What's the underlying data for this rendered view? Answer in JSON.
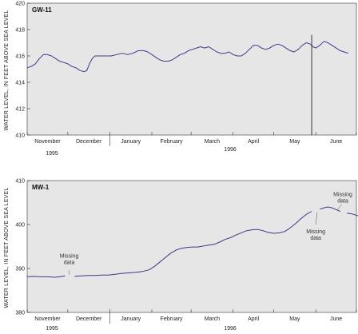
{
  "chart_data": [
    {
      "type": "line",
      "panel_label": "GW-11",
      "ylabel": "WATER LEVEL, IN FEET ABOVE SEA LEVEL",
      "ylim": [
        410,
        420
      ],
      "yticks": [
        410,
        412,
        414,
        416,
        418,
        420
      ],
      "month_labels": [
        "November",
        "December",
        "January",
        "February",
        "March",
        "April",
        "May",
        "June"
      ],
      "year_labels": [
        "1995",
        "1996"
      ],
      "grid": false,
      "background": "#e6e6e6",
      "line_color": "#3a3a8c",
      "series": [
        {
          "values": [
            [
              0,
              415.1
            ],
            [
              3,
              415.2
            ],
            [
              6,
              415.4
            ],
            [
              9,
              415.8
            ],
            [
              12,
              416.1
            ],
            [
              15,
              416.1
            ],
            [
              18,
              416.0
            ],
            [
              21,
              415.8
            ],
            [
              24,
              415.6
            ],
            [
              27,
              415.5
            ],
            [
              30,
              415.4
            ],
            [
              33,
              415.2
            ],
            [
              36,
              415.1
            ],
            [
              39,
              414.9
            ],
            [
              42,
              414.8
            ],
            [
              44,
              414.9
            ],
            [
              46,
              415.4
            ],
            [
              48,
              415.8
            ],
            [
              50,
              416.0
            ],
            [
              54,
              416.0
            ],
            [
              58,
              416.0
            ],
            [
              62,
              416.0
            ],
            [
              66,
              416.1
            ],
            [
              70,
              416.2
            ],
            [
              74,
              416.1
            ],
            [
              78,
              416.2
            ],
            [
              82,
              416.4
            ],
            [
              86,
              416.4
            ],
            [
              89,
              416.3
            ],
            [
              92,
              416.1
            ],
            [
              95,
              415.9
            ],
            [
              98,
              415.7
            ],
            [
              101,
              415.6
            ],
            [
              104,
              415.6
            ],
            [
              107,
              415.7
            ],
            [
              110,
              415.9
            ],
            [
              113,
              416.1
            ],
            [
              116,
              416.2
            ],
            [
              119,
              416.4
            ],
            [
              122,
              416.5
            ],
            [
              125,
              416.6
            ],
            [
              128,
              416.7
            ],
            [
              131,
              416.6
            ],
            [
              134,
              416.7
            ],
            [
              137,
              416.5
            ],
            [
              140,
              416.3
            ],
            [
              143,
              416.2
            ],
            [
              146,
              416.2
            ],
            [
              149,
              416.3
            ],
            [
              152,
              416.1
            ],
            [
              155,
              416.0
            ],
            [
              158,
              416.0
            ],
            [
              161,
              416.2
            ],
            [
              164,
              416.5
            ],
            [
              167,
              416.8
            ],
            [
              170,
              416.8
            ],
            [
              173,
              416.6
            ],
            [
              176,
              416.5
            ],
            [
              179,
              416.6
            ],
            [
              182,
              416.8
            ],
            [
              185,
              416.9
            ],
            [
              188,
              416.8
            ],
            [
              191,
              416.6
            ],
            [
              194,
              416.4
            ],
            [
              197,
              416.3
            ],
            [
              200,
              416.5
            ],
            [
              203,
              416.8
            ],
            [
              206,
              417.0
            ],
            [
              209,
              416.9
            ],
            [
              211,
              416.7
            ],
            [
              213,
              416.6
            ],
            [
              216,
              416.8
            ],
            [
              219,
              417.1
            ],
            [
              222,
              417.0
            ],
            [
              225,
              416.8
            ],
            [
              228,
              416.6
            ],
            [
              231,
              416.4
            ],
            [
              234,
              416.3
            ],
            [
              237,
              416.2
            ]
          ]
        }
      ],
      "marker_line_x": 210
    },
    {
      "type": "line",
      "panel_label": "MW-1",
      "ylabel": "WATER LEVEL, IN FEET ABOVE SEA LEVEL",
      "ylim": [
        380,
        410
      ],
      "yticks": [
        380,
        390,
        400,
        410
      ],
      "month_labels": [
        "November",
        "December",
        "January",
        "February",
        "March",
        "April",
        "May",
        "June"
      ],
      "year_labels": [
        "1995",
        "1996"
      ],
      "grid": false,
      "background": "#e6e6e6",
      "line_color": "#3a3a8c",
      "series": [
        {
          "values": [
            [
              0,
              388.1
            ],
            [
              5,
              388.2
            ],
            [
              10,
              388.1
            ],
            [
              15,
              388.1
            ],
            [
              20,
              388.0
            ],
            [
              24,
              388.1
            ],
            [
              28,
              388.3
            ]
          ]
        },
        {
          "values": [
            [
              35,
              388.2
            ],
            [
              40,
              388.3
            ],
            [
              45,
              388.4
            ],
            [
              50,
              388.4
            ],
            [
              55,
              388.5
            ],
            [
              60,
              388.5
            ],
            [
              65,
              388.7
            ],
            [
              70,
              388.9
            ],
            [
              75,
              389.0
            ],
            [
              80,
              389.1
            ],
            [
              85,
              389.3
            ],
            [
              90,
              389.7
            ],
            [
              94,
              390.5
            ],
            [
              98,
              391.5
            ],
            [
              102,
              392.5
            ],
            [
              106,
              393.5
            ],
            [
              110,
              394.2
            ],
            [
              114,
              394.6
            ],
            [
              118,
              394.8
            ],
            [
              122,
              394.9
            ],
            [
              126,
              394.9
            ],
            [
              130,
              395.1
            ],
            [
              134,
              395.3
            ],
            [
              138,
              395.5
            ],
            [
              142,
              396.0
            ],
            [
              146,
              396.6
            ],
            [
              150,
              397.0
            ],
            [
              154,
              397.6
            ],
            [
              158,
              398.1
            ],
            [
              162,
              398.6
            ],
            [
              166,
              398.8
            ],
            [
              170,
              398.9
            ],
            [
              174,
              398.6
            ],
            [
              178,
              398.2
            ],
            [
              182,
              398.0
            ],
            [
              186,
              398.1
            ],
            [
              190,
              398.4
            ],
            [
              194,
              399.2
            ],
            [
              198,
              400.2
            ],
            [
              202,
              401.3
            ],
            [
              206,
              402.3
            ],
            [
              210,
              403.0
            ]
          ]
        },
        {
          "values": [
            [
              216,
              403.5
            ],
            [
              219,
              403.8
            ],
            [
              222,
              404.0
            ],
            [
              225,
              403.8
            ],
            [
              228,
              403.4
            ],
            [
              231,
              403.0
            ]
          ]
        },
        {
          "values": [
            [
              236,
              402.6
            ],
            [
              240,
              402.4
            ],
            [
              244,
              402.0
            ],
            [
              248,
              401.6
            ],
            [
              252,
              401.2
            ],
            [
              256,
              400.8
            ],
            [
              259,
              400.5
            ]
          ]
        }
      ],
      "annotations": [
        {
          "text": "Missing data",
          "x": 31,
          "y": 392.5
        },
        {
          "text": "Missing data",
          "x": 213,
          "y": 398.0
        },
        {
          "text": "Missing data",
          "x": 233,
          "y": 406.5
        }
      ]
    }
  ]
}
